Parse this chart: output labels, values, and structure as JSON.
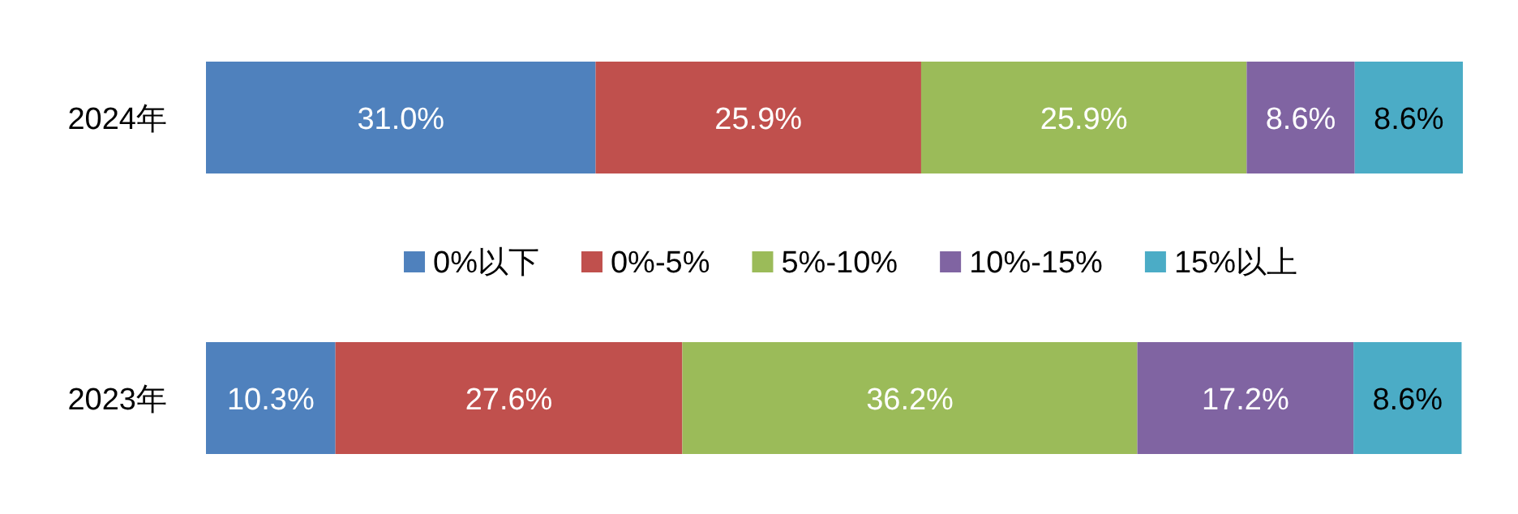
{
  "chart_data": {
    "type": "bar",
    "orientation": "horizontal",
    "stacked": true,
    "legend": "center",
    "categories": [
      "2024年",
      "2023年"
    ],
    "series": [
      {
        "name": "0%以下",
        "color": "#4f81bd",
        "values": [
          31.0,
          10.3
        ],
        "value_labels": [
          "31.0%",
          "10.3%"
        ]
      },
      {
        "name": "0%-5%",
        "color": "#c0504d",
        "values": [
          25.9,
          27.6
        ],
        "value_labels": [
          "25.9%",
          "27.6%"
        ]
      },
      {
        "name": "5%-10%",
        "color": "#9bbb59",
        "values": [
          25.9,
          36.2
        ],
        "value_labels": [
          "25.9%",
          "36.2%"
        ]
      },
      {
        "name": "10%-15%",
        "color": "#8064a2",
        "values": [
          8.6,
          17.2
        ],
        "value_labels": [
          "8.6%",
          "17.2%"
        ]
      },
      {
        "name": "15%以上",
        "color": "#4bacc6",
        "values": [
          8.6,
          8.6
        ],
        "value_labels": [
          "8.6%",
          "8.6%"
        ]
      }
    ]
  }
}
